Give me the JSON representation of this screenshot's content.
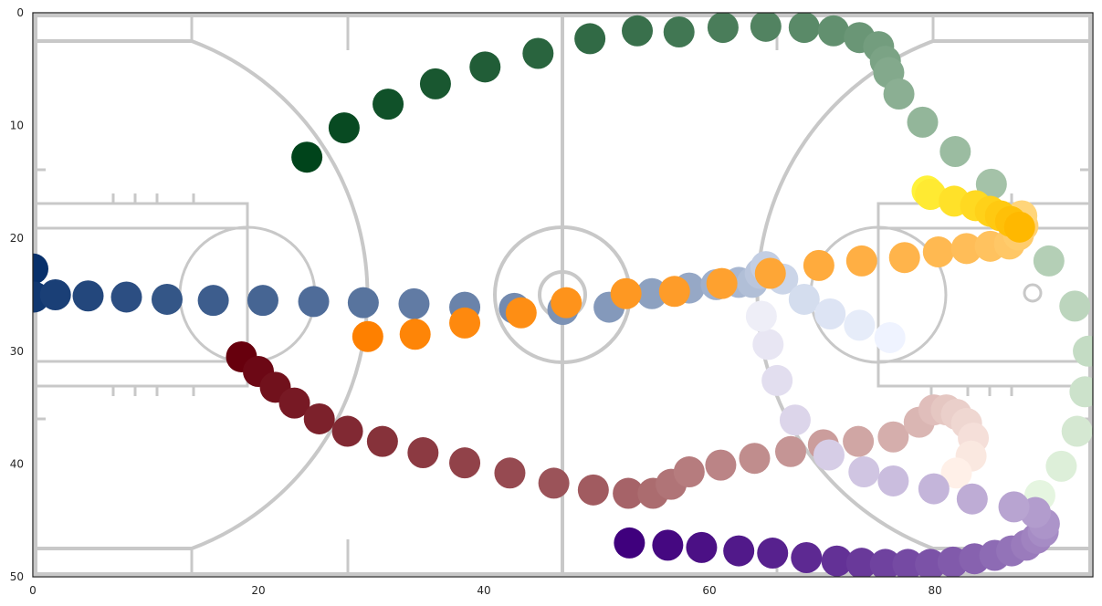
{
  "chart_data": {
    "type": "scatter",
    "title": "",
    "xlabel": "",
    "ylabel": "",
    "xlim": [
      0,
      94
    ],
    "ylim": [
      50,
      0
    ],
    "y_inverted": true,
    "grid": false,
    "legend": "none",
    "background": "basketball-court",
    "xticks": [
      0,
      20,
      40,
      60,
      80
    ],
    "yticks": [
      0,
      10,
      20,
      30,
      40,
      50
    ],
    "series": [
      {
        "colormap": "Greens",
        "points": [
          [
            24.3,
            12.8
          ],
          [
            27.6,
            10.2
          ],
          [
            31.5,
            8.1
          ],
          [
            35.7,
            6.3
          ],
          [
            40.1,
            4.8
          ],
          [
            44.8,
            3.6
          ],
          [
            49.4,
            2.3
          ],
          [
            53.6,
            1.6
          ],
          [
            57.3,
            1.7
          ],
          [
            61.2,
            1.3
          ],
          [
            65.0,
            1.2
          ],
          [
            68.4,
            1.3
          ],
          [
            71.0,
            1.6
          ],
          [
            73.3,
            2.2
          ],
          [
            75.0,
            3.0
          ],
          [
            75.6,
            4.3
          ],
          [
            75.9,
            5.3
          ],
          [
            76.8,
            7.2
          ],
          [
            78.9,
            9.7
          ],
          [
            81.8,
            12.3
          ],
          [
            85.0,
            15.2
          ],
          [
            87.4,
            18.6
          ],
          [
            90.1,
            22.0
          ],
          [
            92.4,
            26.0
          ],
          [
            93.6,
            30.0
          ],
          [
            93.3,
            33.6
          ],
          [
            92.6,
            37.1
          ],
          [
            91.2,
            40.2
          ],
          [
            89.3,
            42.8
          ]
        ]
      },
      {
        "colormap": "Blues",
        "points": [
          [
            0.0,
            22.7
          ],
          [
            0.1,
            25.2
          ],
          [
            2.0,
            25.0
          ],
          [
            4.9,
            25.1
          ],
          [
            8.3,
            25.2
          ],
          [
            11.9,
            25.4
          ],
          [
            16.0,
            25.5
          ],
          [
            20.4,
            25.5
          ],
          [
            24.9,
            25.6
          ],
          [
            29.3,
            25.7
          ],
          [
            33.8,
            25.8
          ],
          [
            38.3,
            26.1
          ],
          [
            42.7,
            26.2
          ],
          [
            47.0,
            26.3
          ],
          [
            51.1,
            26.1
          ],
          [
            54.9,
            24.9
          ],
          [
            58.2,
            24.4
          ],
          [
            60.6,
            24.1
          ],
          [
            62.6,
            23.9
          ],
          [
            63.8,
            23.9
          ],
          [
            64.5,
            23.1
          ],
          [
            65.0,
            22.5
          ],
          [
            66.5,
            23.6
          ],
          [
            68.4,
            25.4
          ],
          [
            70.7,
            26.7
          ],
          [
            73.3,
            27.7
          ],
          [
            76.0,
            28.8
          ]
        ]
      },
      {
        "colormap": "Oranges",
        "points": [
          [
            29.7,
            28.7
          ],
          [
            33.9,
            28.5
          ],
          [
            38.3,
            27.5
          ],
          [
            43.3,
            26.6
          ],
          [
            47.3,
            25.7
          ],
          [
            52.6,
            24.9
          ],
          [
            56.9,
            24.7
          ],
          [
            61.1,
            24.0
          ],
          [
            65.4,
            23.1
          ],
          [
            69.7,
            22.4
          ],
          [
            73.5,
            22.0
          ],
          [
            77.3,
            21.7
          ],
          [
            80.3,
            21.2
          ],
          [
            82.8,
            20.9
          ],
          [
            84.9,
            20.7
          ],
          [
            86.6,
            20.5
          ],
          [
            87.4,
            19.7
          ],
          [
            87.8,
            18.9
          ],
          [
            87.7,
            18.0
          ]
        ]
      },
      {
        "colormap": "Wistia",
        "points": [
          [
            79.3,
            15.8
          ],
          [
            79.6,
            16.1
          ],
          [
            81.7,
            16.7
          ],
          [
            83.6,
            17.1
          ],
          [
            84.9,
            17.6
          ],
          [
            85.8,
            18.0
          ],
          [
            86.7,
            18.5
          ],
          [
            87.5,
            19.0
          ]
        ]
      },
      {
        "colormap": "Reds",
        "points": [
          [
            18.5,
            30.5
          ],
          [
            20.0,
            31.8
          ],
          [
            21.5,
            33.2
          ],
          [
            23.2,
            34.6
          ],
          [
            25.4,
            36.0
          ],
          [
            27.9,
            37.1
          ],
          [
            31.0,
            38.0
          ],
          [
            34.6,
            39.0
          ],
          [
            38.3,
            39.9
          ],
          [
            42.3,
            40.8
          ],
          [
            46.2,
            41.7
          ],
          [
            49.7,
            42.3
          ],
          [
            52.8,
            42.6
          ],
          [
            55.0,
            42.6
          ],
          [
            56.6,
            41.8
          ],
          [
            58.2,
            40.7
          ],
          [
            61.0,
            40.1
          ],
          [
            64.0,
            39.5
          ],
          [
            67.2,
            38.9
          ],
          [
            70.1,
            38.3
          ],
          [
            73.2,
            38.0
          ],
          [
            76.3,
            37.6
          ],
          [
            78.6,
            36.3
          ],
          [
            79.9,
            35.2
          ],
          [
            81.0,
            35.2
          ],
          [
            81.9,
            35.6
          ],
          [
            82.8,
            36.4
          ],
          [
            83.4,
            37.7
          ],
          [
            83.2,
            39.3
          ],
          [
            81.9,
            40.8
          ]
        ]
      },
      {
        "colormap": "Purples",
        "points": [
          [
            52.9,
            47.0
          ],
          [
            56.3,
            47.2
          ],
          [
            59.3,
            47.4
          ],
          [
            62.6,
            47.7
          ],
          [
            65.6,
            47.9
          ],
          [
            68.6,
            48.3
          ],
          [
            71.3,
            48.6
          ],
          [
            73.5,
            48.8
          ],
          [
            75.6,
            48.9
          ],
          [
            77.6,
            48.9
          ],
          [
            79.6,
            48.9
          ],
          [
            81.6,
            48.7
          ],
          [
            83.5,
            48.4
          ],
          [
            85.3,
            48.1
          ],
          [
            86.8,
            47.7
          ],
          [
            88.1,
            47.2
          ],
          [
            89.0,
            46.6
          ],
          [
            89.6,
            46.0
          ],
          [
            89.7,
            45.3
          ],
          [
            88.9,
            44.3
          ],
          [
            87.0,
            43.8
          ],
          [
            83.3,
            43.1
          ],
          [
            79.9,
            42.2
          ],
          [
            76.3,
            41.5
          ],
          [
            73.7,
            40.7
          ],
          [
            70.6,
            39.2
          ],
          [
            67.6,
            36.1
          ],
          [
            66.0,
            32.6
          ],
          [
            65.2,
            29.4
          ],
          [
            64.6,
            26.9
          ]
        ]
      }
    ]
  }
}
